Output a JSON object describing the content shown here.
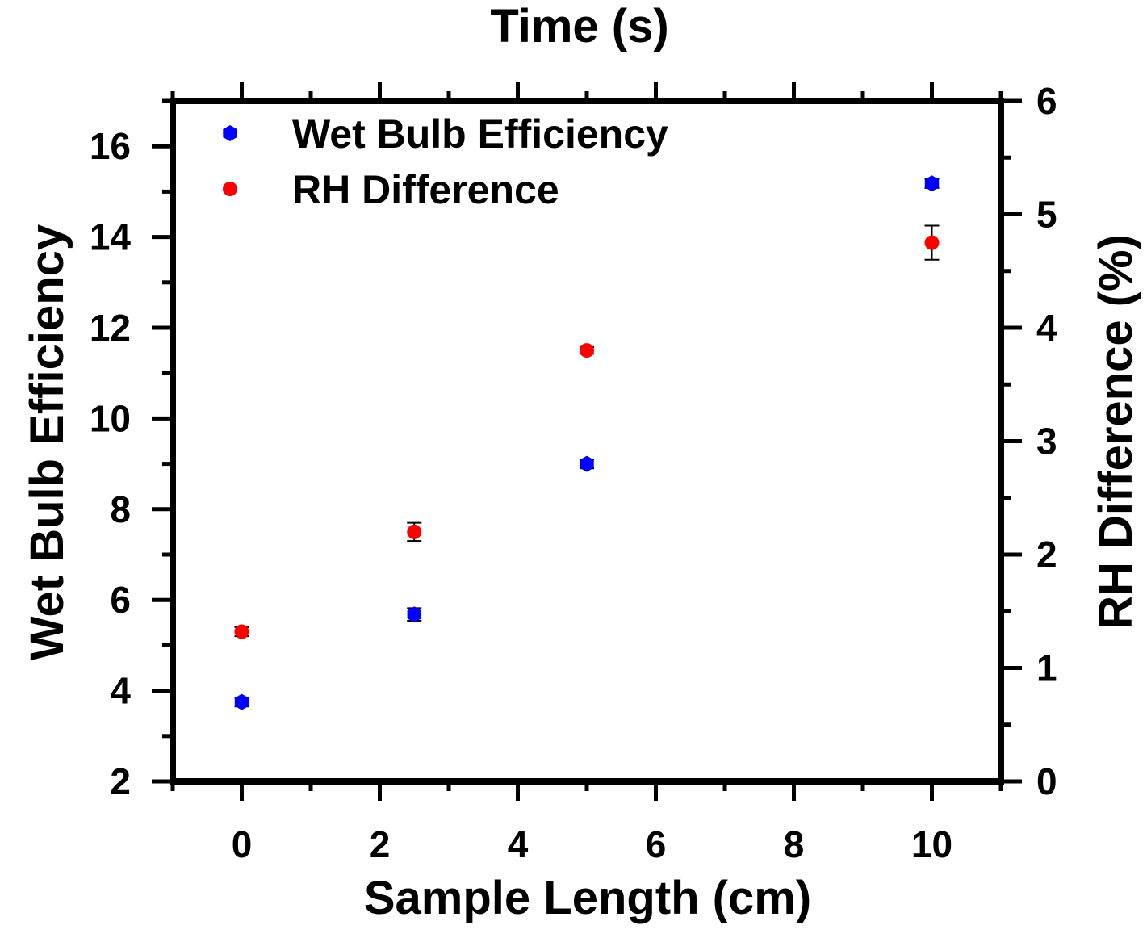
{
  "chart_data": {
    "type": "scatter",
    "title": "Time (s)",
    "xlabel": "Sample Length (cm)",
    "ylabel": "Wet Bulb Efficiency",
    "y2label": "RH Difference (%)",
    "xlim": [
      -1,
      11
    ],
    "ylim": [
      2,
      17
    ],
    "y2lim": [
      0,
      6
    ],
    "xticks": [
      "0",
      "2",
      "4",
      "6",
      "8",
      "10"
    ],
    "yticks": [
      "2",
      "4",
      "6",
      "8",
      "10",
      "12",
      "14",
      "16"
    ],
    "y2ticks": [
      "0",
      "1",
      "2",
      "3",
      "4",
      "5",
      "6"
    ],
    "grid": false,
    "legend_position": "top-left",
    "series": [
      {
        "name": "Wet Bulb Efficiency",
        "axis": "left",
        "marker": "hexagon",
        "color": "#0000ff",
        "x": [
          0,
          2.5,
          5,
          10
        ],
        "y": [
          3.75,
          5.68,
          9.0,
          15.18
        ],
        "yerr": [
          0.1,
          0.14,
          0.1,
          0.1
        ]
      },
      {
        "name": "RH Difference",
        "axis": "right",
        "marker": "circle",
        "color": "#ff0000",
        "x": [
          0,
          2.5,
          5,
          10
        ],
        "y": [
          1.32,
          2.2,
          3.8,
          4.75
        ],
        "yerr": [
          0.04,
          0.08,
          0.03,
          0.15
        ]
      }
    ]
  }
}
